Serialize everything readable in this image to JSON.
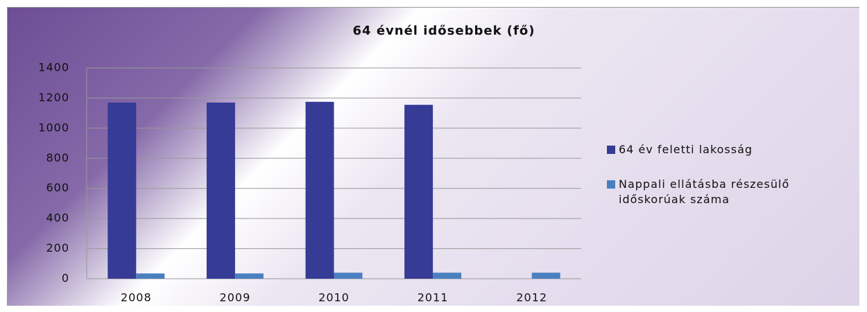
{
  "chart_data": {
    "type": "bar",
    "title": "64 évnél idősebbek (fő)",
    "categories": [
      "2008",
      "2009",
      "2010",
      "2011",
      "2012"
    ],
    "series": [
      {
        "name": "64 év feletti lakosság",
        "color": "#363b96",
        "values": [
          1170,
          1170,
          1175,
          1155,
          null
        ]
      },
      {
        "name": "Nappali ellátásba részesülő időskorúak száma",
        "color": "#4a7fc0",
        "values": [
          35,
          35,
          40,
          40,
          40
        ]
      }
    ],
    "ylim": [
      0,
      1400
    ],
    "yticks": [
      0,
      200,
      400,
      600,
      800,
      1000,
      1200,
      1400
    ],
    "grid": true,
    "legend": "right"
  }
}
